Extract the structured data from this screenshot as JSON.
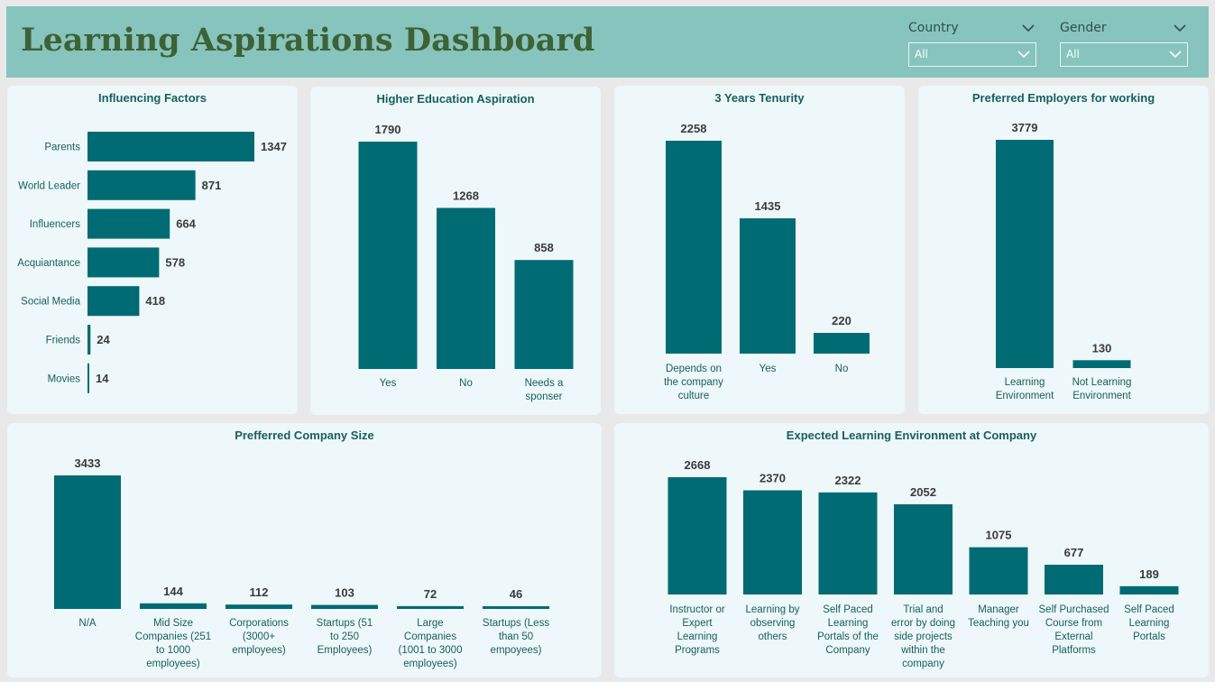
{
  "header": {
    "title": "Learning Aspirations Dashboard",
    "filters": [
      {
        "label": "Country",
        "value": "All"
      },
      {
        "label": "Gender",
        "value": "All"
      }
    ]
  },
  "colors": {
    "bar": "#006b73",
    "header_bg": "#87c4bd",
    "card_bg": "#eef7f9",
    "title": "#17605e",
    "value": "#3b3b3b",
    "label": "#17605e"
  },
  "chart_data": [
    {
      "id": "influencing",
      "type": "bar",
      "orientation": "horizontal",
      "title": "Influencing Factors",
      "categories": [
        "Parents",
        "World Leader",
        "Influencers",
        "Acquiantance",
        "Social Media",
        "Friends",
        "Movies"
      ],
      "values": [
        1347,
        871,
        664,
        578,
        418,
        24,
        14
      ]
    },
    {
      "id": "higher-edu",
      "type": "bar",
      "title": "Higher Education Aspiration",
      "categories": [
        "Yes",
        "No",
        "Needs a sponser"
      ],
      "values": [
        1790,
        1268,
        858
      ]
    },
    {
      "id": "tenure",
      "type": "bar",
      "title": "3 Years Tenurity",
      "categories": [
        "Depends on the company culture",
        "Yes",
        "No"
      ],
      "values": [
        2258,
        1435,
        220
      ]
    },
    {
      "id": "employers",
      "type": "bar",
      "title": "Preferred Employers for working",
      "categories": [
        "Learning Environment",
        "Not Learning Environment"
      ],
      "values": [
        3779,
        130
      ]
    },
    {
      "id": "company-size",
      "type": "bar",
      "title": "Prefferred Company Size",
      "categories": [
        "N/A",
        "Mid Size Companies (251 to 1000 employees)",
        "Corporations (3000+ employees)",
        "Startups (51 to 250 Employees)",
        "Large Companies (1001 to 3000 employees)",
        "Startups (Less than 50 empoyees)"
      ],
      "values": [
        3433,
        144,
        112,
        103,
        72,
        46
      ]
    },
    {
      "id": "learning-env",
      "type": "bar",
      "title": "Expected Learning Environment at Company",
      "categories": [
        "Instructor or Expert Learning Programs",
        "Learning by observing others",
        "Self Paced Learning Portals of the Company",
        "Trial and error by doing side projects within the company",
        "Manager Teaching you",
        "Self Purchased Course from External Platforms",
        "Self Paced Learning Portals"
      ],
      "values": [
        2668,
        2370,
        2322,
        2052,
        1075,
        677,
        189
      ]
    }
  ]
}
